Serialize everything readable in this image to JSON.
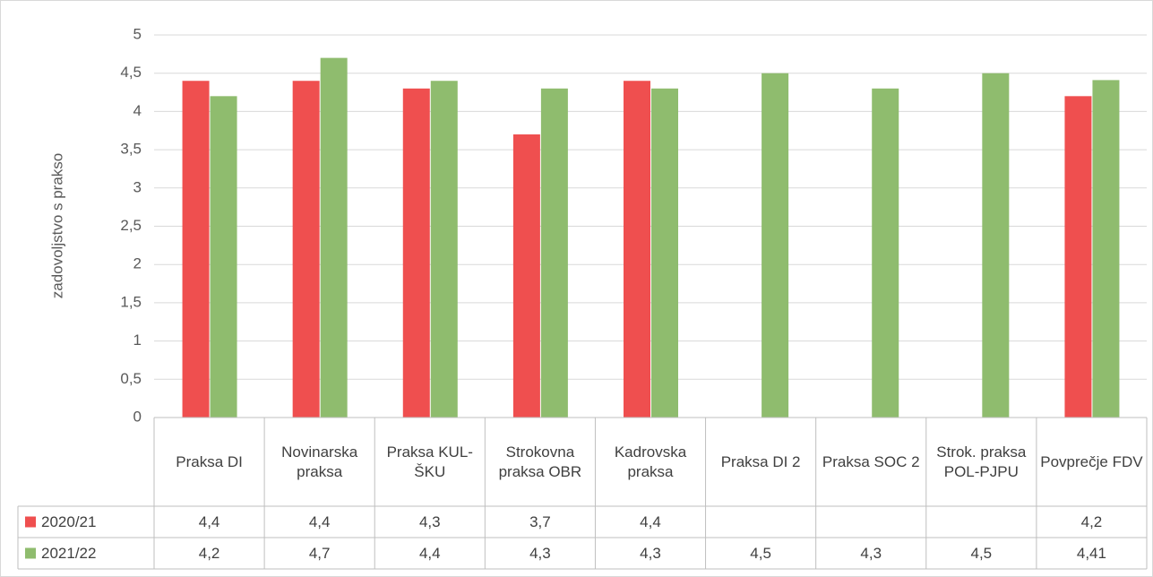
{
  "chart_data": {
    "type": "bar",
    "y_label": "zadovoljstvo s prakso",
    "categories": [
      "Praksa DI",
      "Novinarska praksa",
      "Praksa KUL-ŠKU",
      "Strokovna praksa OBR",
      "Kadrovska praksa",
      "Praksa DI 2",
      "Praksa SOC 2",
      "Strok. praksa POL-PJPU",
      "Povprečje FDV"
    ],
    "series": [
      {
        "name": "2020/21",
        "color": "#ef4f4f",
        "values": [
          4.4,
          4.4,
          4.3,
          3.7,
          4.4,
          null,
          null,
          null,
          4.2
        ],
        "value_labels": [
          "4,4",
          "4,4",
          "4,3",
          "3,7",
          "4,4",
          null,
          null,
          null,
          "4,2"
        ]
      },
      {
        "name": "2021/22",
        "color": "#8fbc6e",
        "values": [
          4.2,
          4.7,
          4.4,
          4.3,
          4.3,
          4.5,
          4.3,
          4.5,
          4.41
        ],
        "value_labels": [
          "4,2",
          "4,7",
          "4,4",
          "4,3",
          "4,3",
          "4,5",
          "4,3",
          "4,5",
          "4,41"
        ]
      }
    ],
    "ylim": [
      0,
      5
    ],
    "yticks": [
      0,
      {
        "value": 0.5,
        "label": "0,5"
      },
      1,
      {
        "value": 1.5,
        "label": "1,5"
      },
      2,
      {
        "value": 2.5,
        "label": "2,5"
      },
      3,
      {
        "value": 3.5,
        "label": "3,5"
      },
      4,
      {
        "value": 4.5,
        "label": "4,5"
      },
      5
    ],
    "grid": true,
    "legend": "data-table"
  }
}
